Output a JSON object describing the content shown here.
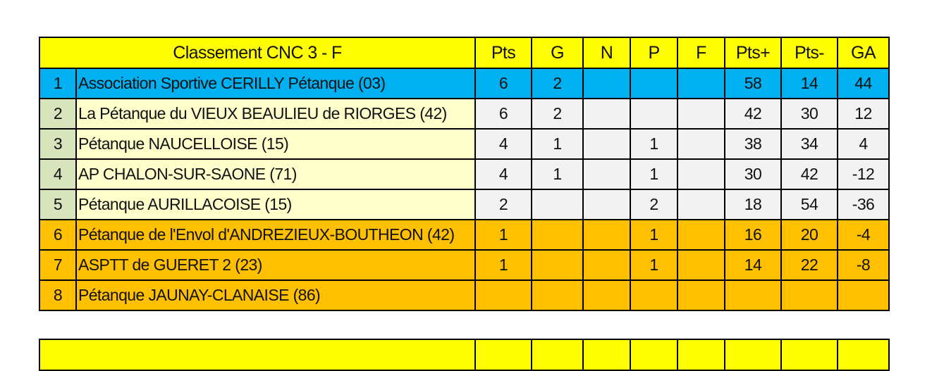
{
  "table": {
    "title": "Classement CNC 3 - F",
    "columns": [
      "Pts",
      "G",
      "N",
      "P",
      "F",
      "Pts+",
      "Pts-",
      "GA"
    ],
    "colors": {
      "header": "#ffff00",
      "first": "#00b0f0",
      "middle_rank": "#d8e4bc",
      "middle_name": "#ffffcc",
      "middle_numbers": "#f2f2f2",
      "bottom": "#ffc000"
    },
    "rows": [
      {
        "rank": "1",
        "team": "Association Sportive CERILLY Pétanque (03)",
        "pts": "6",
        "g": "2",
        "n": "",
        "p": "",
        "f": "",
        "pts_plus": "58",
        "pts_minus": "14",
        "ga": "44"
      },
      {
        "rank": "2",
        "team": "La Pétanque du VIEUX BEAULIEU de RIORGES (42)",
        "pts": "6",
        "g": "2",
        "n": "",
        "p": "",
        "f": "",
        "pts_plus": "42",
        "pts_minus": "30",
        "ga": "12"
      },
      {
        "rank": "3",
        "team": "Pétanque NAUCELLOISE (15)",
        "pts": "4",
        "g": "1",
        "n": "",
        "p": "1",
        "f": "",
        "pts_plus": "38",
        "pts_minus": "34",
        "ga": "4"
      },
      {
        "rank": "4",
        "team": "AP CHALON-SUR-SAONE (71)",
        "pts": "4",
        "g": "1",
        "n": "",
        "p": "1",
        "f": "",
        "pts_plus": "30",
        "pts_minus": "42",
        "ga": "-12"
      },
      {
        "rank": "5",
        "team": "Pétanque AURILLACOISE (15)",
        "pts": "2",
        "g": "",
        "n": "",
        "p": "2",
        "f": "",
        "pts_plus": "18",
        "pts_minus": "54",
        "ga": "-36"
      },
      {
        "rank": "6",
        "team": "Pétanque de l'Envol d'ANDREZIEUX-BOUTHEON (42)",
        "pts": "1",
        "g": "",
        "n": "",
        "p": "1",
        "f": "",
        "pts_plus": "16",
        "pts_minus": "20",
        "ga": "-4"
      },
      {
        "rank": "7",
        "team": "ASPTT de GUERET 2 (23)",
        "pts": "1",
        "g": "",
        "n": "",
        "p": "1",
        "f": "",
        "pts_plus": "14",
        "pts_minus": "22",
        "ga": "-8"
      },
      {
        "rank": "8",
        "team": "Pétanque JAUNAY-CLANAISE (86)",
        "pts": "",
        "g": "",
        "n": "",
        "p": "",
        "f": "",
        "pts_plus": "",
        "pts_minus": "",
        "ga": ""
      }
    ]
  }
}
